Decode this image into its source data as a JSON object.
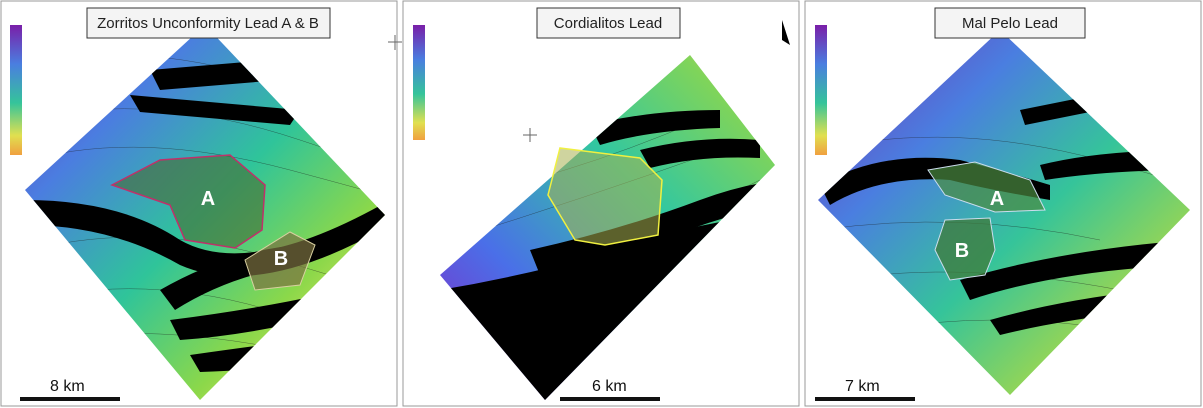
{
  "panels": [
    {
      "title": "Zorritos Unconformity Lead A & B",
      "scale": "8 km",
      "leads": [
        "A",
        "B"
      ]
    },
    {
      "title": "Cordialitos Lead",
      "scale": "6 km"
    },
    {
      "title": "Mal Pelo Lead",
      "scale": "7 km",
      "leads": [
        "A",
        "B"
      ]
    }
  ]
}
